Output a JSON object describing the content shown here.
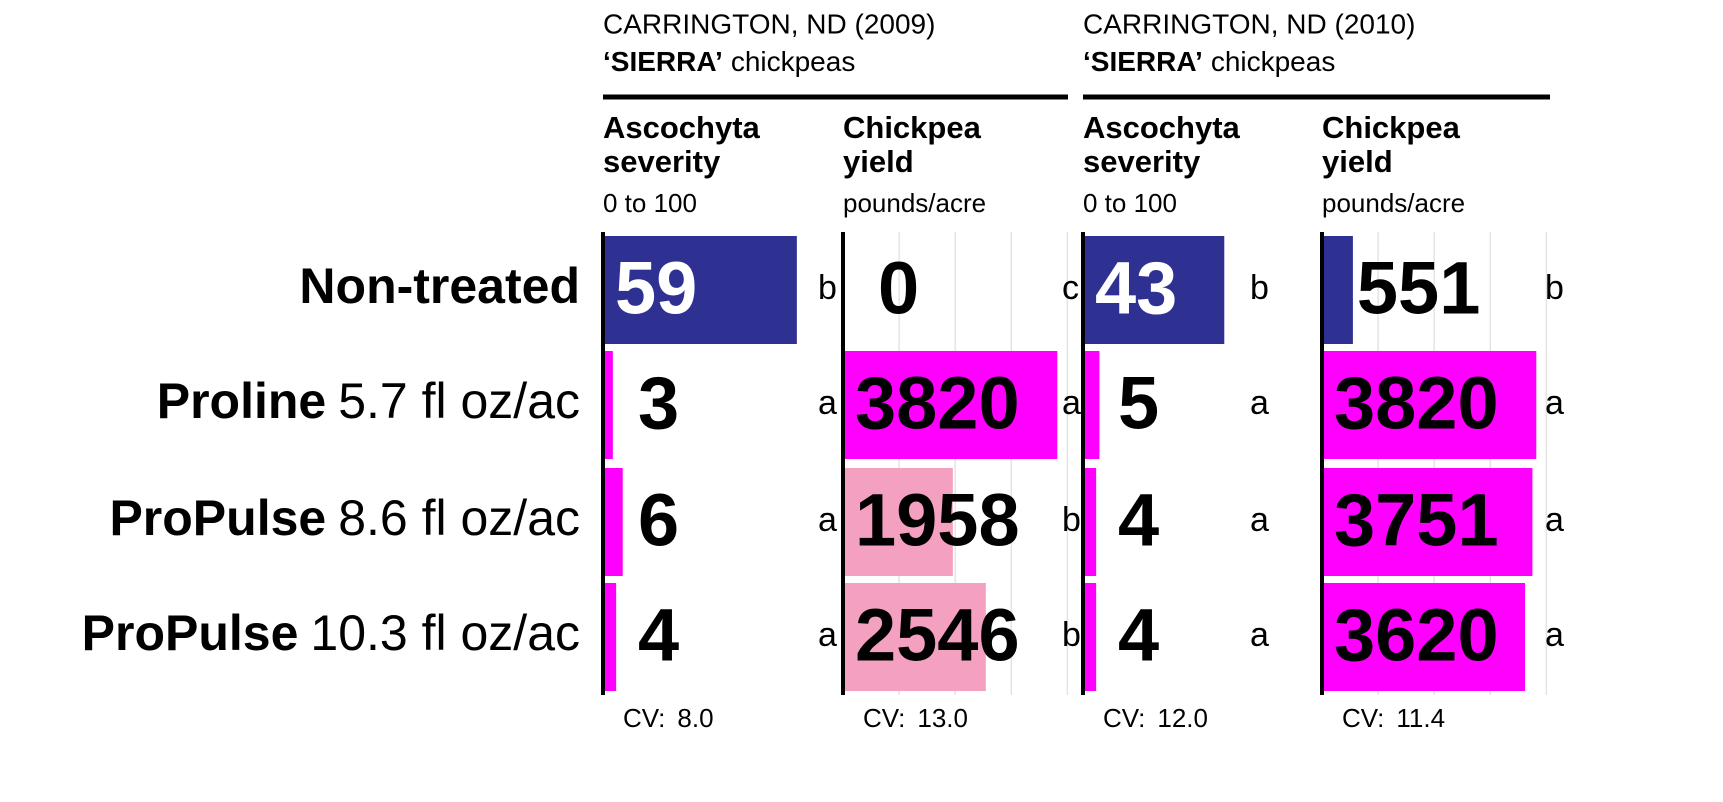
{
  "chart_data": {
    "type": "bar",
    "groups": [
      {
        "title": "CARRINGTON, ND (2009)",
        "subtitle_bold": "‘SIERRA’",
        "subtitle": "chickpeas"
      },
      {
        "title": "CARRINGTON, ND (2010)",
        "subtitle_bold": "‘SIERRA’",
        "subtitle": "chickpeas"
      }
    ],
    "rows": [
      {
        "name": "Non-treated"
      },
      {
        "name": "Proline",
        "rate": "5.7 fl oz/ac"
      },
      {
        "name": "ProPulse",
        "rate": "8.6 fl oz/ac"
      },
      {
        "name": "ProPulse",
        "rate": "10.3 fl oz/ac"
      }
    ],
    "panels": [
      {
        "title": [
          "Ascochyta",
          "severity"
        ],
        "unit": "0 to 100",
        "xlim": [
          0,
          70
        ],
        "values": [
          59,
          3,
          6,
          4
        ],
        "letters": [
          "b",
          "a",
          "a",
          "a"
        ],
        "colors": [
          "#2e3192",
          "#ff00ff",
          "#ff00ff",
          "#ff00ff"
        ],
        "text_colors": [
          "#ffffff",
          "#000000",
          "#000000",
          "#000000"
        ],
        "cv_label": "CV:",
        "cv": "8.0"
      },
      {
        "title": [
          "Chickpea",
          "yield"
        ],
        "unit": "pounds/acre",
        "xlim": [
          0,
          4100
        ],
        "xticks": [
          1000,
          2000,
          3000,
          4000
        ],
        "grid": true,
        "values": [
          0,
          3820,
          1958,
          2546
        ],
        "letters": [
          "c",
          "a",
          "b",
          "b"
        ],
        "colors": [
          "#2e3192",
          "#ff00ff",
          "#f4a0c0",
          "#f4a0c0"
        ],
        "text_colors": [
          "#000000",
          "#000000",
          "#000000",
          "#000000"
        ],
        "cv_label": "CV:",
        "cv": "13.0"
      },
      {
        "title": [
          "Ascochyta",
          "severity"
        ],
        "unit": "0 to 100",
        "xlim": [
          0,
          70
        ],
        "values": [
          43,
          5,
          4,
          4
        ],
        "letters": [
          "b",
          "a",
          "a",
          "a"
        ],
        "colors": [
          "#2e3192",
          "#ff00ff",
          "#ff00ff",
          "#ff00ff"
        ],
        "text_colors": [
          "#ffffff",
          "#000000",
          "#000000",
          "#000000"
        ],
        "cv_label": "CV:",
        "cv": "12.0"
      },
      {
        "title": [
          "Chickpea",
          "yield"
        ],
        "unit": "pounds/acre",
        "xlim": [
          0,
          4100
        ],
        "xticks": [
          1000,
          2000,
          3000,
          4000
        ],
        "grid": true,
        "values": [
          551,
          3820,
          3751,
          3620
        ],
        "letters": [
          "b",
          "a",
          "a",
          "a"
        ],
        "colors": [
          "#2e3192",
          "#ff00ff",
          "#ff00ff",
          "#ff00ff"
        ],
        "text_colors": [
          "#000000",
          "#000000",
          "#000000",
          "#000000"
        ],
        "cv_label": "CV:",
        "cv": "11.4"
      }
    ]
  }
}
